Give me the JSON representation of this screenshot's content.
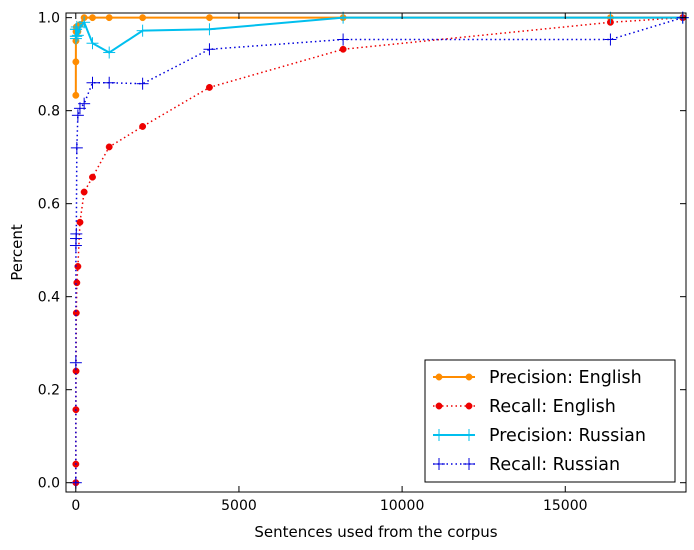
{
  "chart_data": {
    "type": "line",
    "xlabel": "Sentences used from the corpus",
    "ylabel": "Percent",
    "xlim": [
      -300,
      18700
    ],
    "ylim": [
      -0.02,
      1.01
    ],
    "xticks": [
      0,
      5000,
      10000,
      15000
    ],
    "yticks": [
      0.0,
      0.2,
      0.4,
      0.6,
      0.8,
      1.0
    ],
    "xtick_labels": [
      "0",
      "5000",
      "10000",
      "15000"
    ],
    "ytick_labels": [
      "0.0",
      "0.2",
      "0.4",
      "0.6",
      "0.8",
      "1.0"
    ],
    "grid": false,
    "legend_position": "lower-right",
    "series": [
      {
        "name": "Precision: English",
        "color": "#ff8c00",
        "line_style": "solid",
        "marker": "circle",
        "x": [
          1,
          2,
          4,
          8,
          16,
          32,
          64,
          128,
          256,
          512,
          1024,
          2048,
          4096,
          8192,
          16384,
          18600
        ],
        "y": [
          0.833,
          0.905,
          0.95,
          0.97,
          0.98,
          0.975,
          0.97,
          0.985,
          1.0,
          1.0,
          1.0,
          1.0,
          1.0,
          1.0,
          1.0,
          1.0
        ]
      },
      {
        "name": "Recall: English",
        "color": "#ee0000",
        "line_style": "dotted",
        "marker": "circle",
        "x": [
          1,
          2,
          4,
          8,
          16,
          32,
          64,
          128,
          256,
          512,
          1024,
          2048,
          4096,
          8192,
          16384,
          18600
        ],
        "y": [
          0.0,
          0.04,
          0.157,
          0.24,
          0.365,
          0.43,
          0.465,
          0.56,
          0.625,
          0.657,
          0.722,
          0.766,
          0.85,
          0.932,
          0.99,
          1.0
        ]
      },
      {
        "name": "Precision: Russian",
        "color": "#00bfee",
        "line_style": "solid",
        "marker": "plus",
        "x": [
          1,
          2,
          4,
          8,
          16,
          32,
          64,
          128,
          256,
          512,
          1024,
          2048,
          4096,
          8192,
          16384,
          18600
        ],
        "y": [
          0.96,
          0.975,
          0.955,
          0.975,
          0.96,
          0.98,
          0.962,
          0.98,
          0.99,
          0.945,
          0.925,
          0.972,
          0.975,
          1.0,
          1.0,
          1.0
        ]
      },
      {
        "name": "Recall: Russian",
        "color": "#0000dd",
        "line_style": "dotted",
        "marker": "plus",
        "x": [
          1,
          2,
          4,
          8,
          16,
          32,
          64,
          128,
          256,
          512,
          1024,
          2048,
          4096,
          8192,
          16384,
          18600
        ],
        "y": [
          0.0,
          0.258,
          0.51,
          0.525,
          0.535,
          0.72,
          0.79,
          0.805,
          0.815,
          0.86,
          0.86,
          0.858,
          0.932,
          0.953,
          0.953,
          1.0
        ]
      }
    ]
  }
}
